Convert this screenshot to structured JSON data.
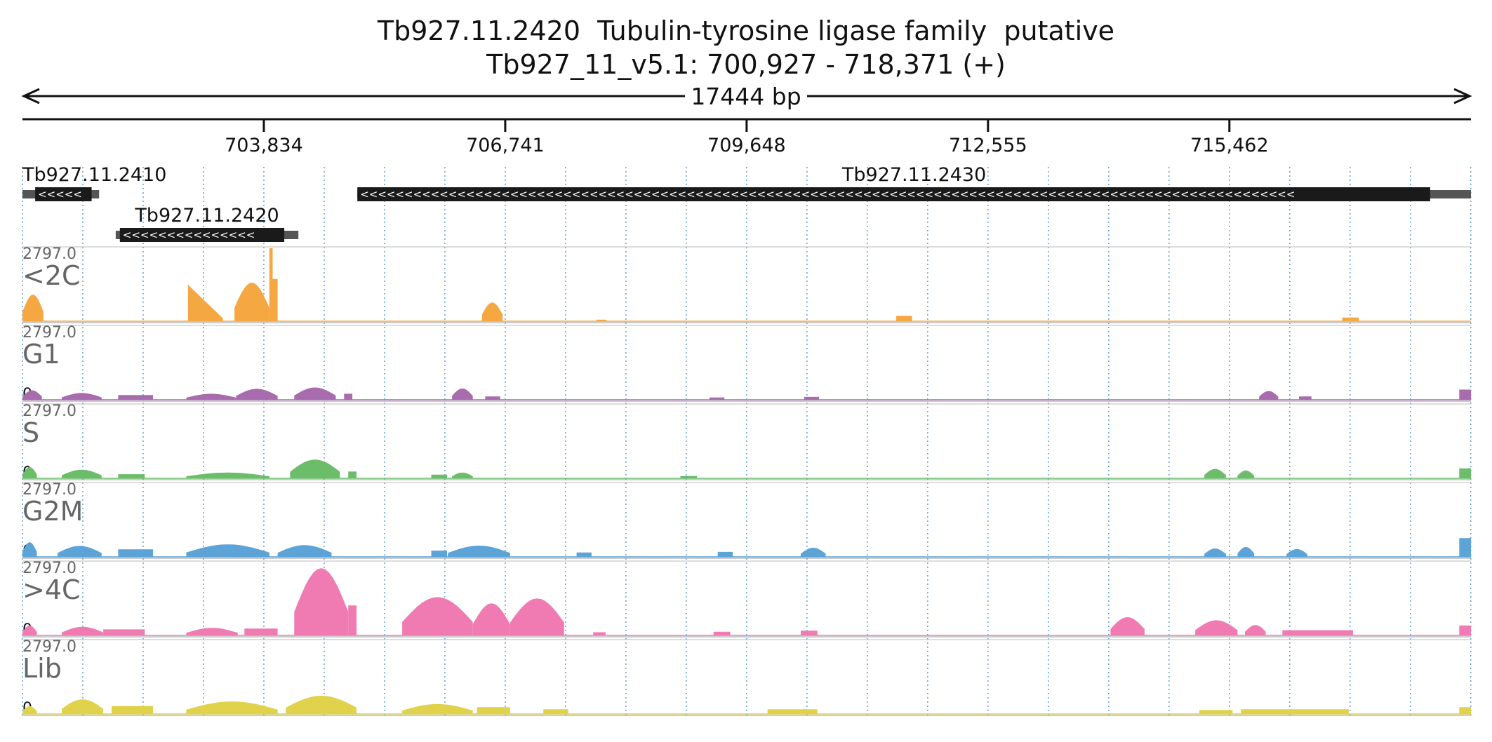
{
  "header": {
    "title": "Tb927.11.2420  Tubulin-tyrosine ligase family  putative",
    "locus": "Tb927_11_v5.1: 700,927 - 718,371 (+)",
    "span_label": "17444 bp"
  },
  "colors": {
    "<2C": "#f5a742",
    "G1": "#a86cae",
    "S": "#6cbd6a",
    "G2M": "#5ca4d8",
    ">4C": "#f07bb3",
    "Lib": "#e0d24a",
    "gene": "#1a1a1a",
    "grid": "#6aa7dc"
  },
  "chart_data": {
    "type": "area",
    "x_range": [
      700927,
      718371
    ],
    "x_ticks": [
      {
        "value": 703834,
        "label": "703,834"
      },
      {
        "value": 706741,
        "label": "706,741"
      },
      {
        "value": 709648,
        "label": "709,648"
      },
      {
        "value": 712555,
        "label": "712,555"
      },
      {
        "value": 715462,
        "label": "715,462"
      }
    ],
    "genes": [
      {
        "name": "Tb927.11.2410",
        "start": 700927,
        "end": 701850,
        "cds_start": 701080,
        "cds_end": 701760,
        "strand": "-",
        "row": 0
      },
      {
        "name": "Tb927.11.2420",
        "start": 702050,
        "end": 704250,
        "cds_start": 702100,
        "cds_end": 704080,
        "strand": "-",
        "row": 1
      },
      {
        "name": "Tb927.11.2430",
        "start": 704960,
        "end": 718371,
        "cds_start": 704960,
        "cds_end": 717880,
        "strand": "-",
        "row": 0
      }
    ],
    "tracks": [
      {
        "name": "<2C",
        "ymax_label": "2797.0",
        "ymin_label": "0",
        "ylim": [
          0,
          2797
        ],
        "features": [
          {
            "start": 700927,
            "end": 701180,
            "peak": 1020,
            "shape": "hump"
          },
          {
            "start": 702920,
            "end": 703340,
            "peak": 1400,
            "shape": "ramp"
          },
          {
            "start": 703480,
            "end": 703900,
            "peak": 1480,
            "shape": "hump"
          },
          {
            "start": 703900,
            "end": 703940,
            "peak": 2797,
            "shape": "spike"
          },
          {
            "start": 703940,
            "end": 704000,
            "peak": 1620,
            "shape": "flat"
          },
          {
            "start": 706460,
            "end": 706710,
            "peak": 720,
            "shape": "hump"
          },
          {
            "start": 707840,
            "end": 707960,
            "peak": 60,
            "shape": "flat"
          },
          {
            "start": 711450,
            "end": 711640,
            "peak": 210,
            "shape": "flat"
          },
          {
            "start": 716820,
            "end": 717020,
            "peak": 140,
            "shape": "flat"
          }
        ]
      },
      {
        "name": "G1",
        "ymax_label": "2797.0",
        "ymin_label": "0",
        "ylim": [
          0,
          2797
        ],
        "features": [
          {
            "start": 700927,
            "end": 701160,
            "peak": 360,
            "shape": "hump"
          },
          {
            "start": 701400,
            "end": 701880,
            "peak": 260,
            "shape": "hump"
          },
          {
            "start": 702080,
            "end": 702500,
            "peak": 180,
            "shape": "flat"
          },
          {
            "start": 702900,
            "end": 703500,
            "peak": 230,
            "shape": "hump"
          },
          {
            "start": 703500,
            "end": 704000,
            "peak": 420,
            "shape": "hump"
          },
          {
            "start": 704200,
            "end": 704700,
            "peak": 470,
            "shape": "hump"
          },
          {
            "start": 704800,
            "end": 704900,
            "peak": 230,
            "shape": "flat"
          },
          {
            "start": 706100,
            "end": 706350,
            "peak": 430,
            "shape": "hump"
          },
          {
            "start": 706500,
            "end": 706680,
            "peak": 130,
            "shape": "flat"
          },
          {
            "start": 709200,
            "end": 709380,
            "peak": 90,
            "shape": "flat"
          },
          {
            "start": 710340,
            "end": 710520,
            "peak": 110,
            "shape": "flat"
          },
          {
            "start": 715820,
            "end": 716050,
            "peak": 340,
            "shape": "hump"
          },
          {
            "start": 716300,
            "end": 716450,
            "peak": 130,
            "shape": "flat"
          },
          {
            "start": 718230,
            "end": 718371,
            "peak": 390,
            "shape": "flat"
          }
        ]
      },
      {
        "name": "S",
        "ymax_label": "2797.0",
        "ymin_label": "0",
        "ylim": [
          0,
          2797
        ],
        "features": [
          {
            "start": 700927,
            "end": 701100,
            "peak": 430,
            "shape": "hump"
          },
          {
            "start": 701400,
            "end": 701880,
            "peak": 330,
            "shape": "hump"
          },
          {
            "start": 702080,
            "end": 702400,
            "peak": 160,
            "shape": "flat"
          },
          {
            "start": 702900,
            "end": 703900,
            "peak": 220,
            "shape": "hump"
          },
          {
            "start": 704150,
            "end": 704750,
            "peak": 720,
            "shape": "hump"
          },
          {
            "start": 704850,
            "end": 704950,
            "peak": 260,
            "shape": "flat"
          },
          {
            "start": 705850,
            "end": 706040,
            "peak": 140,
            "shape": "flat"
          },
          {
            "start": 706100,
            "end": 706350,
            "peak": 220,
            "shape": "hump"
          },
          {
            "start": 708850,
            "end": 709050,
            "peak": 90,
            "shape": "flat"
          },
          {
            "start": 715160,
            "end": 715420,
            "peak": 360,
            "shape": "hump"
          },
          {
            "start": 715560,
            "end": 715760,
            "peak": 300,
            "shape": "hump"
          },
          {
            "start": 718230,
            "end": 718371,
            "peak": 380,
            "shape": "flat"
          }
        ]
      },
      {
        "name": "G2M",
        "ymax_label": "2797.0",
        "ymin_label": "0",
        "ylim": [
          0,
          2797
        ],
        "features": [
          {
            "start": 700927,
            "end": 701100,
            "peak": 560,
            "shape": "hump"
          },
          {
            "start": 701350,
            "end": 701880,
            "peak": 420,
            "shape": "hump"
          },
          {
            "start": 702080,
            "end": 702500,
            "peak": 290,
            "shape": "flat"
          },
          {
            "start": 702900,
            "end": 703900,
            "peak": 480,
            "shape": "hump"
          },
          {
            "start": 704000,
            "end": 704650,
            "peak": 450,
            "shape": "hump"
          },
          {
            "start": 705850,
            "end": 706040,
            "peak": 240,
            "shape": "flat"
          },
          {
            "start": 706050,
            "end": 706800,
            "peak": 430,
            "shape": "hump"
          },
          {
            "start": 707600,
            "end": 707780,
            "peak": 170,
            "shape": "flat"
          },
          {
            "start": 709300,
            "end": 709480,
            "peak": 190,
            "shape": "flat"
          },
          {
            "start": 710300,
            "end": 710600,
            "peak": 350,
            "shape": "hump"
          },
          {
            "start": 715160,
            "end": 715420,
            "peak": 320,
            "shape": "hump"
          },
          {
            "start": 715560,
            "end": 715760,
            "peak": 380,
            "shape": "hump"
          },
          {
            "start": 716150,
            "end": 716400,
            "peak": 300,
            "shape": "hump"
          },
          {
            "start": 718230,
            "end": 718371,
            "peak": 720,
            "shape": "flat"
          }
        ]
      },
      {
        "name": ">4C",
        "ymax_label": "2797.0",
        "ymin_label": "0",
        "ylim": [
          0,
          2797
        ],
        "features": [
          {
            "start": 700927,
            "end": 701100,
            "peak": 380,
            "shape": "hump"
          },
          {
            "start": 701400,
            "end": 701900,
            "peak": 330,
            "shape": "hump"
          },
          {
            "start": 701900,
            "end": 702400,
            "peak": 230,
            "shape": "flat"
          },
          {
            "start": 702900,
            "end": 703520,
            "peak": 290,
            "shape": "hump"
          },
          {
            "start": 703600,
            "end": 704000,
            "peak": 260,
            "shape": "flat"
          },
          {
            "start": 704200,
            "end": 704850,
            "peak": 2580,
            "shape": "hump"
          },
          {
            "start": 704850,
            "end": 704950,
            "peak": 1150,
            "shape": "flat"
          },
          {
            "start": 705500,
            "end": 706350,
            "peak": 1470,
            "shape": "hump"
          },
          {
            "start": 706350,
            "end": 706800,
            "peak": 1230,
            "shape": "hump"
          },
          {
            "start": 706800,
            "end": 707450,
            "peak": 1420,
            "shape": "hump"
          },
          {
            "start": 707800,
            "end": 707950,
            "peak": 120,
            "shape": "flat"
          },
          {
            "start": 709250,
            "end": 709450,
            "peak": 140,
            "shape": "flat"
          },
          {
            "start": 710300,
            "end": 710500,
            "peak": 180,
            "shape": "flat"
          },
          {
            "start": 714030,
            "end": 714440,
            "peak": 700,
            "shape": "hump"
          },
          {
            "start": 715050,
            "end": 715560,
            "peak": 580,
            "shape": "hump"
          },
          {
            "start": 715650,
            "end": 715900,
            "peak": 400,
            "shape": "hump"
          },
          {
            "start": 716100,
            "end": 716950,
            "peak": 200,
            "shape": "flat"
          },
          {
            "start": 718230,
            "end": 718371,
            "peak": 380,
            "shape": "flat"
          }
        ]
      },
      {
        "name": "Lib",
        "ymax_label": "2797.0",
        "ymin_label": "0",
        "ylim": [
          0,
          2797
        ],
        "features": [
          {
            "start": 700927,
            "end": 701100,
            "peak": 300,
            "shape": "hump"
          },
          {
            "start": 701400,
            "end": 701900,
            "peak": 560,
            "shape": "hump"
          },
          {
            "start": 702000,
            "end": 702500,
            "peak": 300,
            "shape": "flat"
          },
          {
            "start": 702900,
            "end": 704000,
            "peak": 480,
            "shape": "hump"
          },
          {
            "start": 704100,
            "end": 704950,
            "peak": 700,
            "shape": "hump"
          },
          {
            "start": 705500,
            "end": 706350,
            "peak": 380,
            "shape": "hump"
          },
          {
            "start": 706400,
            "end": 706800,
            "peak": 260,
            "shape": "flat"
          },
          {
            "start": 707200,
            "end": 707500,
            "peak": 180,
            "shape": "flat"
          },
          {
            "start": 709900,
            "end": 710500,
            "peak": 180,
            "shape": "flat"
          },
          {
            "start": 715100,
            "end": 715500,
            "peak": 150,
            "shape": "flat"
          },
          {
            "start": 715600,
            "end": 716900,
            "peak": 180,
            "shape": "flat"
          },
          {
            "start": 718230,
            "end": 718371,
            "peak": 260,
            "shape": "flat"
          }
        ]
      }
    ]
  }
}
